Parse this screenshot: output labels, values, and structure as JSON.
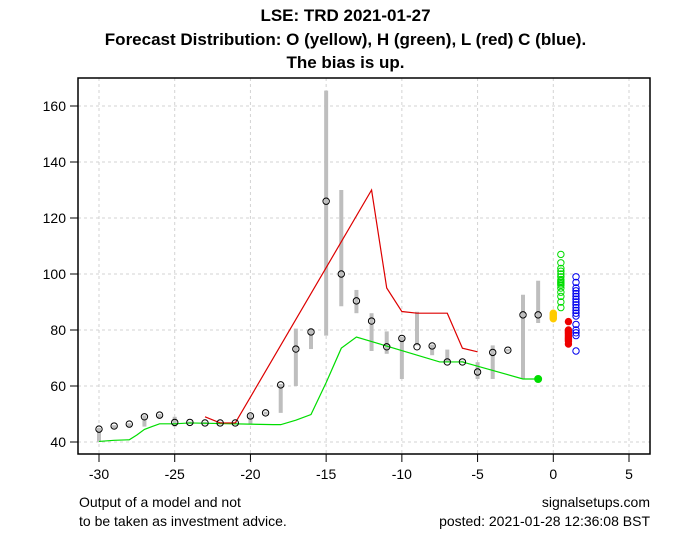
{
  "chart_data": {
    "type": "scatter",
    "title": "LSE: TRD 2021-01-27",
    "subtitle": "Forecast Distribution: O (yellow), H (green), L (red) C (blue).",
    "subtitle2": "The bias is up.",
    "xlabel": "",
    "ylabel": "",
    "xlim": [
      -31.4,
      6.4
    ],
    "ylim": [
      36,
      170
    ],
    "grid": true,
    "x_ticks": [
      -30,
      -25,
      -20,
      -15,
      -10,
      -5,
      0,
      5
    ],
    "y_ticks": [
      40,
      60,
      80,
      100,
      120,
      140,
      160
    ],
    "colors": {
      "range_bar": "#bebebe",
      "close_point": "#000000",
      "high_line": "#00dd00",
      "low_line": "#dd0000",
      "open_forecast": "#ffcc00",
      "high_forecast": "#00dd00",
      "low_forecast": "#ee0000",
      "close_forecast": "#0000ee",
      "grid": "#d3d3d3"
    },
    "history": {
      "x": [
        -30,
        -29,
        -28,
        -27,
        -26,
        -25,
        -24,
        -23,
        -22,
        -21,
        -20,
        -19,
        -18,
        -17,
        -16,
        -15,
        -14,
        -13,
        -12,
        -11,
        -10,
        -9,
        -8,
        -7,
        -6,
        -5,
        -4,
        -3,
        -2,
        -1
      ],
      "close": [
        44.6,
        45.7,
        46.4,
        49,
        49.6,
        47,
        47,
        46.8,
        46.8,
        46.8,
        49.3,
        50.4,
        60.4,
        73.2,
        79.3,
        126,
        100,
        90.4,
        83.2,
        74,
        77,
        74,
        74.3,
        68.6,
        68.6,
        65,
        72,
        72.8,
        85.4,
        85.4
      ],
      "range_low": [
        40,
        44.5,
        45.5,
        45.5,
        48.5,
        45.5,
        46.5,
        46.3,
        46.3,
        46.3,
        46.5,
        49.8,
        50.4,
        60,
        73.2,
        78,
        88.5,
        86,
        72.5,
        71.5,
        62.5,
        74.5,
        71,
        68.6,
        68.6,
        62.5,
        62.5,
        72.3,
        62.5,
        82.5
      ],
      "range_high": [
        45,
        46,
        46.7,
        49.5,
        50,
        49,
        47.3,
        47.2,
        47.2,
        47.2,
        50,
        50.8,
        60.7,
        80.5,
        80.5,
        165.5,
        130,
        94.3,
        86,
        79.5,
        77.5,
        86.5,
        74.8,
        73,
        69,
        68.5,
        74.5,
        73.2,
        92.6,
        97.6
      ]
    },
    "high_line": {
      "x": [
        -30,
        -29,
        -28,
        -27.5,
        -27,
        -26.5,
        -26,
        -25,
        -24,
        -18.5,
        -18,
        -17,
        -16,
        -15,
        -14,
        -13,
        -7.5,
        -6,
        -2,
        -1
      ],
      "y": [
        40.2,
        40.6,
        40.8,
        42.5,
        44.5,
        45.5,
        46.5,
        46.5,
        46.8,
        46.2,
        46.2,
        47.8,
        49.8,
        61.2,
        73.5,
        77.5,
        68.6,
        68.6,
        62.5,
        62.5
      ]
    },
    "low_line": {
      "x": [
        -23,
        -22,
        -21,
        -12,
        -11,
        -10,
        -9,
        -7,
        -6,
        -5
      ],
      "y": [
        49,
        46.8,
        46.8,
        130,
        95,
        86.6,
        86,
        86,
        73.5,
        72.2
      ]
    },
    "last_close_marker": {
      "x": -1,
      "y": 62.5,
      "color": "#00dd00"
    },
    "forecast": {
      "open": {
        "x": 0,
        "values": [
          84,
          84.5,
          85,
          85.5,
          86
        ]
      },
      "high": {
        "x": 0.5,
        "values": [
          88,
          90,
          92,
          93.5,
          95,
          96,
          96.5,
          97,
          97.5,
          98,
          99,
          100,
          101,
          102,
          104,
          107
        ]
      },
      "low": {
        "x": 1,
        "values": [
          75,
          76,
          76.5,
          77,
          77.5,
          78,
          78.5,
          79,
          79.5,
          80,
          83
        ]
      },
      "close": {
        "x": 1.5,
        "values": [
          72.5,
          78,
          79,
          80,
          82,
          85,
          86,
          87,
          88,
          89,
          90,
          91,
          92,
          93,
          94,
          95,
          97,
          99
        ]
      }
    }
  },
  "footer": {
    "left_line1": "Output of a model and not",
    "left_line2": "to be taken as investment advice.",
    "right_line1": "signalsetups.com",
    "right_line2": "posted: 2021-01-28 12:36:08 BST"
  }
}
